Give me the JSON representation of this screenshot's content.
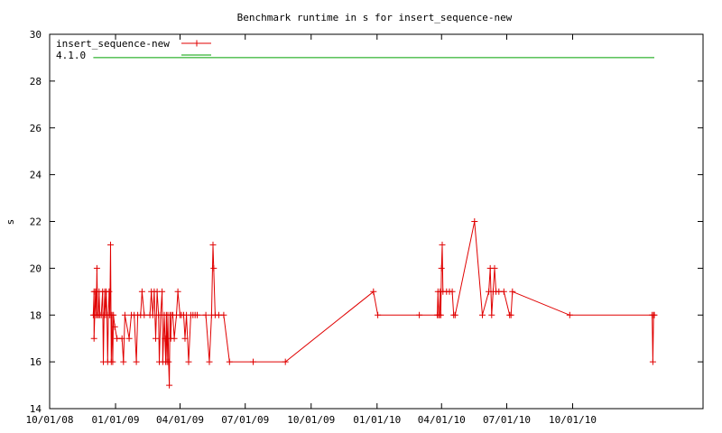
{
  "chart_data": {
    "type": "line",
    "title": "Benchmark runtime in s for insert_sequence-new",
    "xlabel": "",
    "ylabel": "s",
    "xlim": [
      "2008-10-01",
      "2011-04-01"
    ],
    "ylim": [
      14,
      30
    ],
    "x_ticks": [
      "10/01/08",
      "01/01/09",
      "04/01/09",
      "07/01/09",
      "10/01/09",
      "01/01/10",
      "04/01/10",
      "07/01/10",
      "10/01/10"
    ],
    "y_ticks": [
      14,
      16,
      18,
      20,
      22,
      24,
      26,
      28,
      30
    ],
    "grid": false,
    "legend_position": "top-left",
    "series": [
      {
        "name": "insert_sequence-new",
        "color": "#e00000",
        "marker": "plus",
        "points": [
          [
            "2008-12-01",
            18
          ],
          [
            "2008-12-02",
            19
          ],
          [
            "2008-12-02",
            17
          ],
          [
            "2008-12-03",
            18
          ],
          [
            "2008-12-04",
            19
          ],
          [
            "2008-12-05",
            18
          ],
          [
            "2008-12-06",
            20
          ],
          [
            "2008-12-07",
            18
          ],
          [
            "2008-12-08",
            18
          ],
          [
            "2008-12-09",
            19
          ],
          [
            "2008-12-10",
            18
          ],
          [
            "2008-12-12",
            18
          ],
          [
            "2008-12-14",
            19
          ],
          [
            "2008-12-15",
            16
          ],
          [
            "2008-12-16",
            18
          ],
          [
            "2008-12-17",
            19
          ],
          [
            "2008-12-18",
            18
          ],
          [
            "2008-12-19",
            19
          ],
          [
            "2008-12-20",
            18
          ],
          [
            "2008-12-21",
            16
          ],
          [
            "2008-12-22",
            18
          ],
          [
            "2008-12-23",
            19
          ],
          [
            "2008-12-24",
            18
          ],
          [
            "2008-12-25",
            21
          ],
          [
            "2008-12-26",
            16
          ],
          [
            "2008-12-27",
            18
          ],
          [
            "2008-12-28",
            16
          ],
          [
            "2008-12-29",
            18
          ],
          [
            "2008-12-31",
            17.5
          ],
          [
            "2009-01-03",
            17
          ],
          [
            "2009-01-10",
            17
          ],
          [
            "2009-01-12",
            16
          ],
          [
            "2009-01-14",
            18
          ],
          [
            "2009-01-20",
            17
          ],
          [
            "2009-01-23",
            18
          ],
          [
            "2009-01-27",
            18
          ],
          [
            "2009-01-30",
            16
          ],
          [
            "2009-02-01",
            18
          ],
          [
            "2009-02-05",
            18
          ],
          [
            "2009-02-07",
            19
          ],
          [
            "2009-02-10",
            18
          ],
          [
            "2009-02-18",
            18
          ],
          [
            "2009-02-20",
            19
          ],
          [
            "2009-02-22",
            18
          ],
          [
            "2009-02-24",
            19
          ],
          [
            "2009-02-26",
            17
          ],
          [
            "2009-02-28",
            19
          ],
          [
            "2009-03-02",
            18
          ],
          [
            "2009-03-03",
            16
          ],
          [
            "2009-03-05",
            18
          ],
          [
            "2009-03-07",
            19
          ],
          [
            "2009-03-08",
            16
          ],
          [
            "2009-03-10",
            18
          ],
          [
            "2009-03-11",
            17
          ],
          [
            "2009-03-12",
            16
          ],
          [
            "2009-03-13",
            18
          ],
          [
            "2009-03-14",
            16
          ],
          [
            "2009-03-15",
            18
          ],
          [
            "2009-03-16",
            16
          ],
          [
            "2009-03-17",
            15
          ],
          [
            "2009-03-18",
            18
          ],
          [
            "2009-03-19",
            17
          ],
          [
            "2009-03-20",
            18
          ],
          [
            "2009-03-22",
            18
          ],
          [
            "2009-03-24",
            17
          ],
          [
            "2009-03-27",
            18
          ],
          [
            "2009-03-29",
            19
          ],
          [
            "2009-04-01",
            18
          ],
          [
            "2009-04-03",
            18
          ],
          [
            "2009-04-06",
            18
          ],
          [
            "2009-04-08",
            17
          ],
          [
            "2009-04-10",
            18
          ],
          [
            "2009-04-13",
            16
          ],
          [
            "2009-04-16",
            18
          ],
          [
            "2009-04-19",
            18
          ],
          [
            "2009-04-22",
            18
          ],
          [
            "2009-04-25",
            18
          ],
          [
            "2009-05-07",
            18
          ],
          [
            "2009-05-12",
            16
          ],
          [
            "2009-05-15",
            18
          ],
          [
            "2009-05-17",
            21
          ],
          [
            "2009-05-18",
            20
          ],
          [
            "2009-05-20",
            18
          ],
          [
            "2009-05-25",
            18
          ],
          [
            "2009-06-01",
            18
          ],
          [
            "2009-06-09",
            16
          ],
          [
            "2009-07-12",
            16
          ],
          [
            "2009-08-26",
            16
          ],
          [
            "2009-12-27",
            19
          ],
          [
            "2010-01-02",
            18
          ],
          [
            "2010-03-01",
            18
          ],
          [
            "2010-03-26",
            18
          ],
          [
            "2010-03-27",
            19
          ],
          [
            "2010-03-28",
            18
          ],
          [
            "2010-03-29",
            18
          ],
          [
            "2010-03-30",
            19
          ],
          [
            "2010-03-31",
            18
          ],
          [
            "2010-04-01",
            20
          ],
          [
            "2010-04-02",
            21
          ],
          [
            "2010-04-03",
            19
          ],
          [
            "2010-04-08",
            19
          ],
          [
            "2010-04-12",
            19
          ],
          [
            "2010-04-16",
            19
          ],
          [
            "2010-04-18",
            18
          ],
          [
            "2010-04-20",
            18
          ],
          [
            "2010-05-17",
            22
          ],
          [
            "2010-05-28",
            18
          ],
          [
            "2010-06-06",
            19
          ],
          [
            "2010-06-08",
            20
          ],
          [
            "2010-06-10",
            18
          ],
          [
            "2010-06-12",
            19
          ],
          [
            "2010-06-14",
            20
          ],
          [
            "2010-06-16",
            19
          ],
          [
            "2010-06-20",
            19
          ],
          [
            "2010-06-27",
            19
          ],
          [
            "2010-07-05",
            18
          ],
          [
            "2010-07-07",
            18
          ],
          [
            "2010-07-09",
            19
          ],
          [
            "2010-09-27",
            18
          ],
          [
            "2011-01-20",
            18
          ],
          [
            "2011-01-21",
            16
          ],
          [
            "2011-01-22",
            18
          ],
          [
            "2011-01-23",
            18
          ]
        ]
      },
      {
        "name": "4.1.0",
        "color": "#00a000",
        "marker": "none",
        "points": [
          [
            "2008-12-01",
            29
          ],
          [
            "2011-01-23",
            29
          ]
        ]
      }
    ]
  }
}
